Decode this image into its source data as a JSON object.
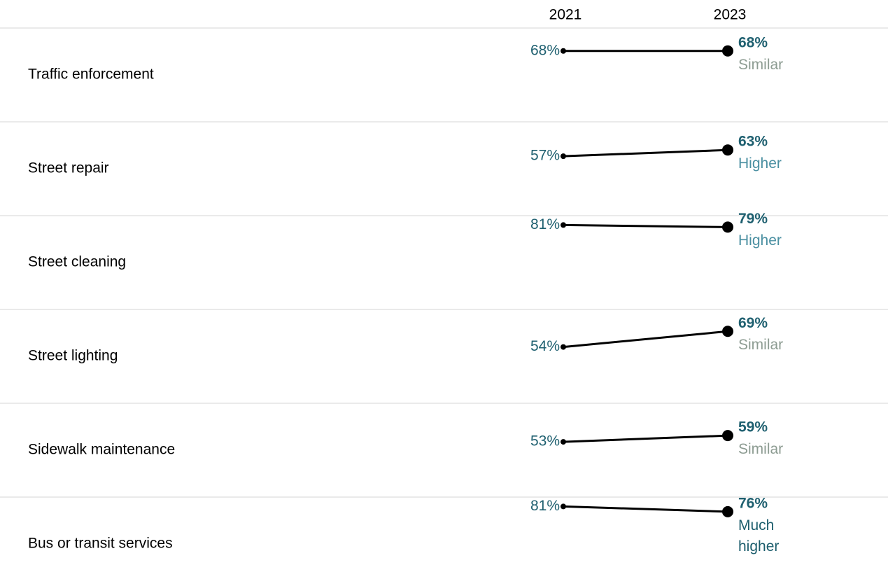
{
  "chart_data": {
    "type": "slope",
    "categories": [
      "Traffic enforcement",
      "Street repair",
      "Street cleaning",
      "Street lighting",
      "Sidewalk maintenance",
      "Bus or transit services"
    ],
    "series": [
      {
        "name": "2021",
        "color": "#000000",
        "label_color": "#1f6070",
        "values": [
          68,
          57,
          81,
          54,
          53,
          81
        ],
        "value_labels": [
          "68%",
          "57%",
          "81%",
          "54%",
          "53%",
          "81%"
        ]
      },
      {
        "name": "2023",
        "color": "#000000",
        "label_color": "#1f6070",
        "values": [
          68,
          63,
          79,
          69,
          59,
          76
        ],
        "value_labels": [
          "68%",
          "63%",
          "79%",
          "69%",
          "59%",
          "76%"
        ]
      }
    ],
    "change_labels": [
      "Similar",
      "Higher",
      "Higher",
      "Similar",
      "Similar",
      "Much higher"
    ],
    "change_colors": {
      "Similar": "#8d9c92",
      "Higher": "#4a8fa1",
      "Much higher": "#1d5e6d"
    },
    "ylim": [
      0,
      90
    ]
  }
}
